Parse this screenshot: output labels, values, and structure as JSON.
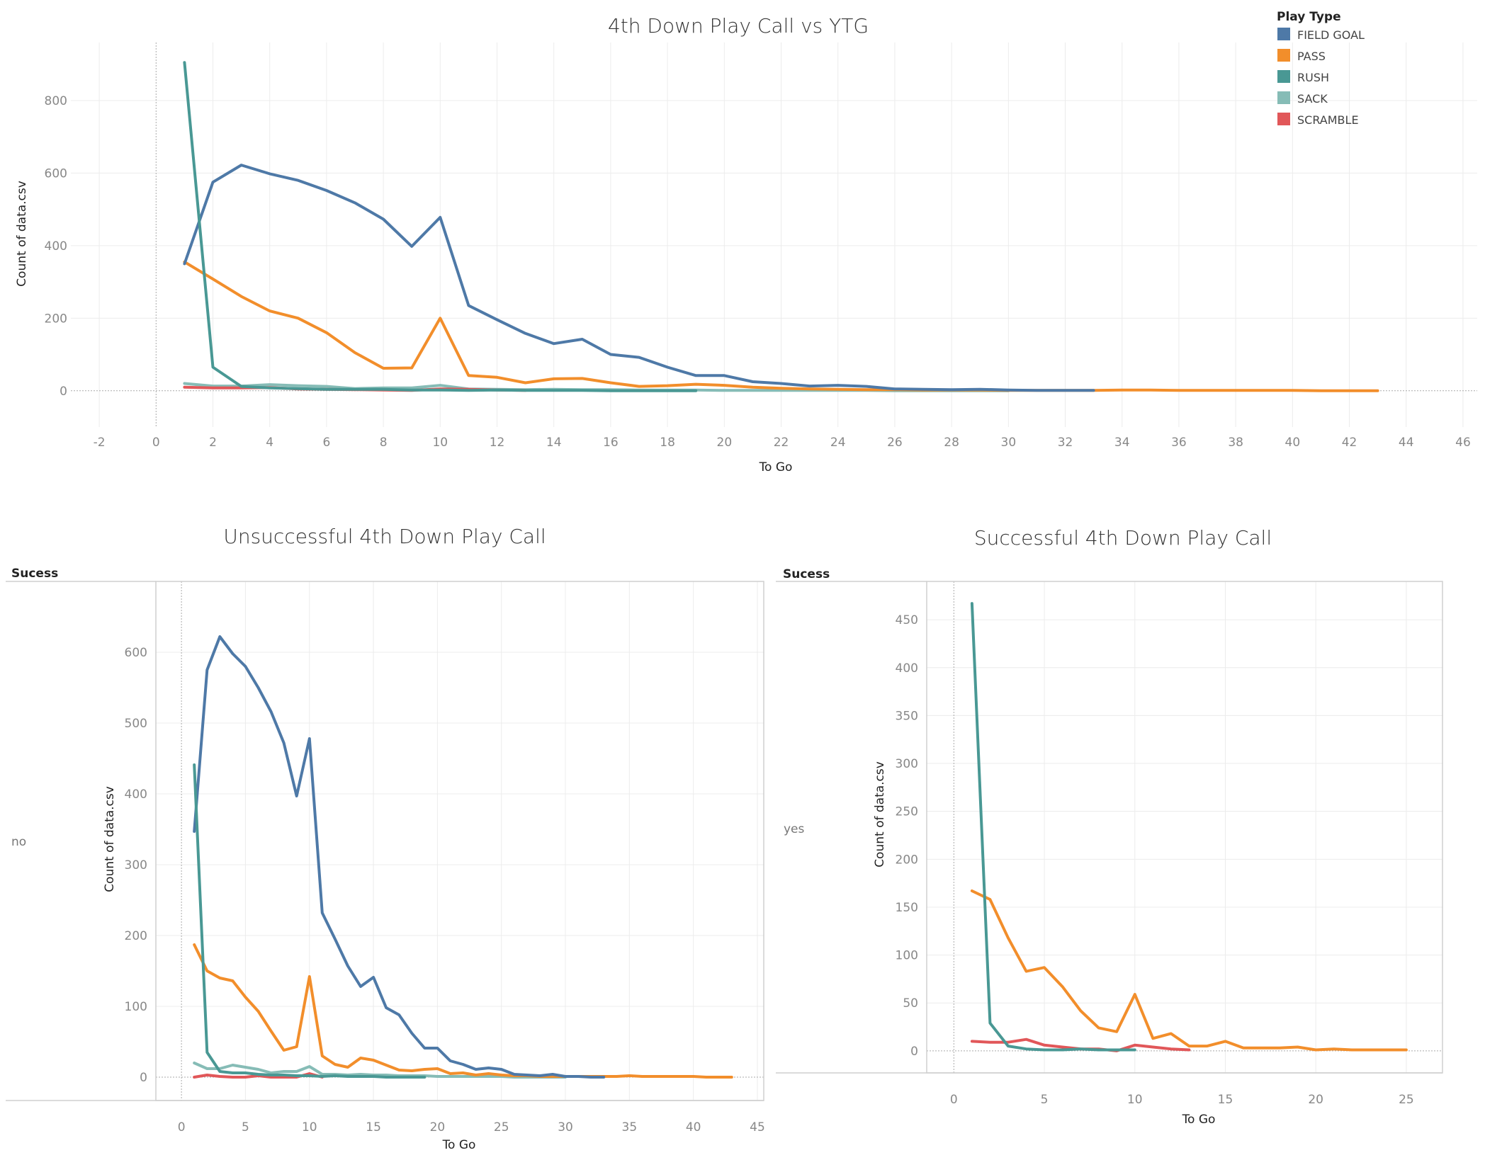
{
  "legend": {
    "title": "Play Type",
    "items": [
      {
        "label": "FIELD GOAL",
        "color": "#4e79a7"
      },
      {
        "label": "PASS",
        "color": "#f28e2b"
      },
      {
        "label": "RUSH",
        "color": "#499894"
      },
      {
        "label": "SACK",
        "color": "#86bcb6"
      },
      {
        "label": "SCRAMBLE",
        "color": "#e15759"
      }
    ]
  },
  "chart_data": [
    {
      "type": "line",
      "title": "4th Down Play Call vs YTG",
      "xlabel": "To Go",
      "ylabel": "Count of data.csv",
      "xlim": [
        -3,
        46.5
      ],
      "ylim": [
        -100,
        960
      ],
      "xticks": [
        -2,
        0,
        2,
        4,
        6,
        8,
        10,
        12,
        14,
        16,
        18,
        20,
        22,
        24,
        26,
        28,
        30,
        32,
        34,
        36,
        38,
        40,
        42,
        44,
        46
      ],
      "yticks": [
        0,
        200,
        400,
        600,
        800
      ],
      "grid": true,
      "legend_position": "top-right",
      "series": [
        {
          "name": "FIELD GOAL",
          "x": [
            1,
            2,
            3,
            4,
            5,
            6,
            7,
            8,
            9,
            10,
            11,
            12,
            13,
            14,
            15,
            16,
            17,
            18,
            19,
            20,
            21,
            22,
            23,
            24,
            25,
            26,
            27,
            28,
            29,
            30,
            31,
            32,
            33
          ],
          "y": [
            350,
            575,
            622,
            598,
            580,
            552,
            518,
            473,
            398,
            478,
            235,
            196,
            158,
            130,
            142,
            100,
            92,
            65,
            42,
            42,
            25,
            20,
            13,
            15,
            12,
            5,
            4,
            3,
            4,
            2,
            1,
            1,
            1
          ]
        },
        {
          "name": "PASS",
          "x": [
            1,
            2,
            3,
            4,
            5,
            6,
            7,
            8,
            9,
            10,
            11,
            12,
            13,
            14,
            15,
            16,
            17,
            18,
            19,
            20,
            21,
            22,
            23,
            24,
            25,
            26,
            27,
            28,
            29,
            30,
            31,
            32,
            33,
            34,
            35,
            36,
            37,
            38,
            39,
            40,
            41,
            42,
            43
          ],
          "y": [
            355,
            308,
            260,
            220,
            200,
            160,
            105,
            62,
            63,
            200,
            42,
            37,
            22,
            33,
            34,
            22,
            12,
            14,
            18,
            15,
            10,
            7,
            5,
            4,
            3,
            3,
            2,
            2,
            2,
            1,
            1,
            1,
            1,
            2,
            2,
            1,
            1,
            1,
            1,
            1,
            0,
            0,
            0
          ]
        },
        {
          "name": "RUSH",
          "x": [
            1,
            2,
            3,
            4,
            5,
            6,
            7,
            8,
            9,
            10,
            11,
            12,
            13,
            14,
            15,
            16,
            17,
            18,
            19
          ],
          "y": [
            905,
            65,
            12,
            8,
            6,
            4,
            4,
            4,
            2,
            2,
            1,
            2,
            1,
            1,
            1,
            0,
            0,
            0,
            0
          ]
        },
        {
          "name": "SACK",
          "x": [
            1,
            2,
            3,
            4,
            5,
            6,
            7,
            8,
            9,
            10,
            11,
            12,
            13,
            14,
            15,
            16,
            17,
            18,
            19,
            20,
            21,
            22,
            23,
            24,
            25,
            26,
            27,
            28,
            29,
            30
          ],
          "y": [
            20,
            13,
            13,
            17,
            14,
            12,
            6,
            8,
            8,
            15,
            5,
            4,
            3,
            4,
            3,
            3,
            2,
            2,
            2,
            1,
            1,
            1,
            1,
            1,
            1,
            0,
            0,
            0,
            0,
            0
          ]
        },
        {
          "name": "SCRAMBLE",
          "x": [
            1,
            2,
            3,
            4,
            5,
            6,
            7,
            8,
            9,
            10,
            11,
            12,
            13
          ],
          "y": [
            10,
            8,
            8,
            9,
            5,
            4,
            3,
            2,
            1,
            5,
            4,
            2,
            1
          ]
        }
      ]
    },
    {
      "type": "line",
      "title": "Unsuccessful 4th Down Play Call",
      "row_header": "Sucess",
      "row_value": "no",
      "xlabel": "To Go",
      "ylabel": "Count of data.csv",
      "xlim": [
        -2,
        45.5
      ],
      "ylim": [
        -33,
        700
      ],
      "xticks": [
        0,
        5,
        10,
        15,
        20,
        25,
        30,
        35,
        40,
        45
      ],
      "yticks": [
        0,
        100,
        200,
        300,
        400,
        500,
        600
      ],
      "grid": true,
      "series": [
        {
          "name": "FIELD GOAL",
          "x": [
            1,
            2,
            3,
            4,
            5,
            6,
            7,
            8,
            9,
            10,
            11,
            12,
            13,
            14,
            15,
            16,
            17,
            18,
            19,
            20,
            21,
            22,
            23,
            24,
            25,
            26,
            27,
            28,
            29,
            30,
            31,
            32,
            33
          ],
          "y": [
            347,
            575,
            622,
            598,
            580,
            550,
            516,
            472,
            397,
            478,
            232,
            195,
            157,
            128,
            141,
            98,
            88,
            62,
            41,
            41,
            23,
            18,
            11,
            13,
            11,
            4,
            3,
            2,
            4,
            1,
            1,
            0,
            0
          ]
        },
        {
          "name": "PASS",
          "x": [
            1,
            2,
            3,
            4,
            5,
            6,
            7,
            8,
            9,
            10,
            11,
            12,
            13,
            14,
            15,
            16,
            17,
            18,
            19,
            20,
            21,
            22,
            23,
            24,
            25,
            26,
            27,
            28,
            29,
            30,
            31,
            32,
            33,
            34,
            35,
            36,
            37,
            38,
            39,
            40,
            41,
            42,
            43
          ],
          "y": [
            187,
            150,
            140,
            136,
            113,
            93,
            65,
            38,
            43,
            142,
            30,
            18,
            14,
            27,
            24,
            17,
            10,
            9,
            11,
            12,
            5,
            6,
            3,
            5,
            3,
            2,
            2,
            1,
            1,
            1,
            1,
            1,
            1,
            1,
            2,
            1,
            1,
            1,
            1,
            1,
            0,
            0,
            0
          ]
        },
        {
          "name": "RUSH",
          "x": [
            1,
            2,
            3,
            4,
            5,
            6,
            7,
            8,
            9,
            10,
            11,
            12,
            13,
            14,
            15,
            16,
            17,
            18,
            19
          ],
          "y": [
            441,
            35,
            8,
            6,
            6,
            4,
            3,
            3,
            2,
            2,
            1,
            2,
            1,
            1,
            1,
            0,
            0,
            0,
            0
          ]
        },
        {
          "name": "SACK",
          "x": [
            1,
            2,
            3,
            4,
            5,
            6,
            7,
            8,
            9,
            10,
            11,
            12,
            13,
            14,
            15,
            16,
            17,
            18,
            19,
            20,
            21,
            22,
            23,
            24,
            25,
            26,
            27,
            28,
            29,
            30
          ],
          "y": [
            20,
            12,
            12,
            17,
            14,
            11,
            6,
            8,
            8,
            15,
            4,
            4,
            3,
            4,
            3,
            3,
            2,
            2,
            2,
            1,
            1,
            1,
            1,
            1,
            1,
            0,
            0,
            0,
            0,
            0
          ]
        },
        {
          "name": "SCRAMBLE",
          "x": [
            1,
            2,
            3,
            4,
            5,
            6,
            7,
            8,
            9,
            10,
            11
          ],
          "y": [
            0,
            3,
            1,
            0,
            0,
            2,
            0,
            0,
            0,
            5,
            0
          ]
        }
      ]
    },
    {
      "type": "line",
      "title": "Successful 4th Down Play Call",
      "row_header": "Sucess",
      "row_value": "yes",
      "xlabel": "To Go",
      "ylabel": "Count of data.csv",
      "xlim": [
        -1.5,
        27
      ],
      "ylim": [
        -23,
        490
      ],
      "xticks": [
        0,
        5,
        10,
        15,
        20,
        25
      ],
      "yticks": [
        0,
        50,
        100,
        150,
        200,
        250,
        300,
        350,
        400,
        450
      ],
      "grid": true,
      "series": [
        {
          "name": "PASS",
          "x": [
            1,
            2,
            3,
            4,
            5,
            6,
            7,
            8,
            9,
            10,
            11,
            12,
            13,
            14,
            15,
            16,
            17,
            18,
            19,
            20,
            21,
            22,
            23,
            24,
            25
          ],
          "y": [
            167,
            158,
            118,
            83,
            87,
            67,
            42,
            24,
            20,
            59,
            13,
            18,
            5,
            5,
            10,
            3,
            3,
            3,
            4,
            1,
            2,
            1,
            1,
            1,
            1
          ]
        },
        {
          "name": "RUSH",
          "x": [
            1,
            2,
            3,
            4,
            5,
            6,
            7,
            8,
            9,
            10
          ],
          "y": [
            467,
            29,
            5,
            2,
            1,
            1,
            2,
            1,
            1,
            1
          ]
        },
        {
          "name": "SCRAMBLE",
          "x": [
            1,
            2,
            3,
            4,
            5,
            6,
            7,
            8,
            9,
            10,
            11,
            12,
            13
          ],
          "y": [
            10,
            9,
            9,
            12,
            6,
            4,
            2,
            2,
            0,
            6,
            4,
            2,
            1
          ]
        }
      ]
    }
  ]
}
